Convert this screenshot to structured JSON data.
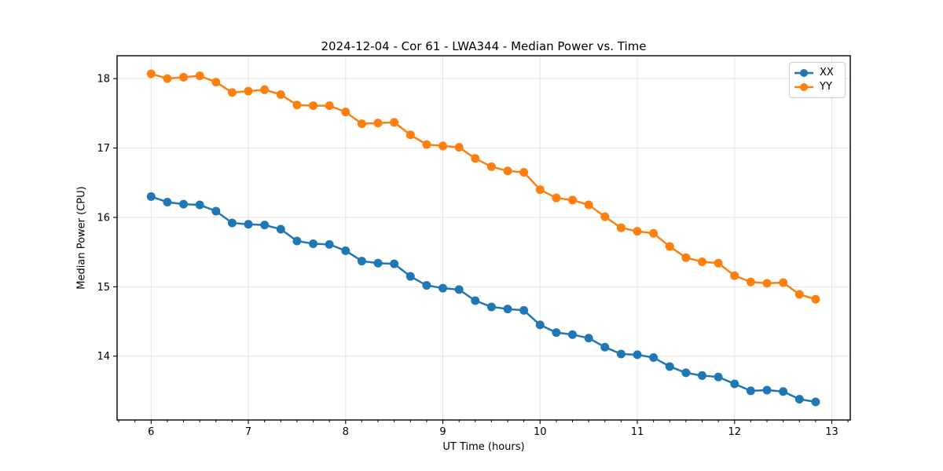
{
  "chart_data": {
    "type": "line",
    "title": "2024-12-04 - Cor 61 - LWA344 - Median Power vs. Time",
    "xlabel": "UT Time (hours)",
    "ylabel": "Median Power (CPU)",
    "x": [
      6,
      6.1667,
      6.3333,
      6.5,
      6.6667,
      6.8333,
      7,
      7.1667,
      7.3333,
      7.5,
      7.6667,
      7.8333,
      8,
      8.1667,
      8.3333,
      8.5,
      8.6667,
      8.8333,
      9,
      9.1667,
      9.3333,
      9.5,
      9.6667,
      9.8333,
      10,
      10.1667,
      10.3333,
      10.5,
      10.6667,
      10.8333,
      11,
      11.1667,
      11.3333,
      11.5,
      11.6667,
      11.8333,
      12,
      12.1667,
      12.3333,
      12.5,
      12.6667,
      12.8333
    ],
    "series": [
      {
        "name": "XX",
        "color": "#1f77b4",
        "values": [
          16.3,
          16.22,
          16.19,
          16.18,
          16.09,
          15.92,
          15.9,
          15.89,
          15.83,
          15.66,
          15.62,
          15.61,
          15.52,
          15.37,
          15.34,
          15.33,
          15.15,
          15.02,
          14.98,
          14.96,
          14.8,
          14.71,
          14.68,
          14.66,
          14.45,
          14.34,
          14.31,
          14.26,
          14.13,
          14.03,
          14.02,
          13.98,
          13.85,
          13.76,
          13.72,
          13.7,
          13.6,
          13.5,
          13.51,
          13.49,
          13.38,
          13.34
        ]
      },
      {
        "name": "YY",
        "color": "#ff7f0e",
        "values": [
          18.07,
          18.0,
          18.02,
          18.04,
          17.95,
          17.8,
          17.82,
          17.84,
          17.77,
          17.62,
          17.61,
          17.61,
          17.52,
          17.35,
          17.36,
          17.37,
          17.19,
          17.05,
          17.03,
          17.01,
          16.85,
          16.73,
          16.67,
          16.65,
          16.4,
          16.28,
          16.25,
          16.18,
          16.01,
          15.85,
          15.8,
          15.77,
          15.58,
          15.42,
          15.36,
          15.34,
          15.16,
          15.07,
          15.05,
          15.06,
          14.89,
          14.82
        ]
      }
    ],
    "xlim": [
      5.65,
      13.19
    ],
    "ylim": [
      13.08,
      18.33
    ],
    "xticks": [
      6,
      7,
      8,
      9,
      10,
      11,
      12,
      13
    ],
    "yticks": [
      14,
      15,
      16,
      17,
      18
    ],
    "x_minor_ticks_per_hour": 6,
    "grid": true,
    "grid_color": "#e4e4e4",
    "legend_position": "upper right",
    "legend_labels": [
      "XX",
      "YY"
    ]
  }
}
